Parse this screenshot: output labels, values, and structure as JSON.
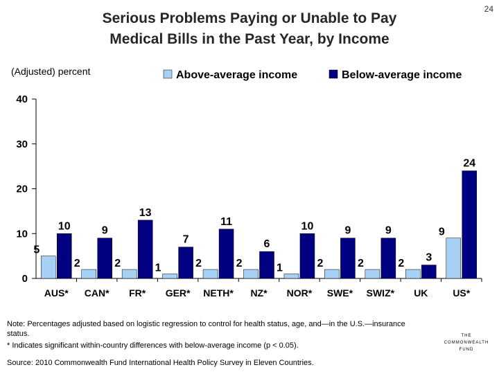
{
  "page_number": "24",
  "title_line1": "Serious Problems Paying or Unable to Pay",
  "title_line2": "Medical Bills in the Past Year, by Income",
  "colors": {
    "above": "#A6D0F4",
    "below": "#000080"
  },
  "notes": {
    "note1": "Note: Percentages adjusted based on logistic regression to control for health status, age, and—in the U.S.—insurance status.",
    "note2": "* Indicates significant within-country differences with below-average income (p < 0.05).",
    "source": "Source: 2010 Commonwealth Fund International Health Policy Survey in Eleven Countries."
  },
  "logo": {
    "line1": "THE",
    "line2": "COMMONWEALTH",
    "line3": "FUND"
  },
  "chart_data": {
    "type": "bar",
    "title": "Serious Problems Paying or Unable to Pay Medical Bills in the Past Year, by Income",
    "ylabel": "(Adjusted) percent",
    "xlabel": "",
    "ylim": [
      0,
      40
    ],
    "yticks": [
      0,
      10,
      20,
      30,
      40
    ],
    "legend_position": "top",
    "categories": [
      "AUS*",
      "CAN*",
      "FR*",
      "GER*",
      "NETH*",
      "NZ*",
      "NOR*",
      "SWE*",
      "SWIZ*",
      "UK",
      "US*"
    ],
    "series": [
      {
        "name": "Above-average income",
        "values": [
          5,
          2,
          2,
          1,
          2,
          2,
          1,
          2,
          2,
          2,
          9
        ]
      },
      {
        "name": "Below-average income",
        "values": [
          10,
          9,
          13,
          7,
          11,
          6,
          10,
          9,
          9,
          3,
          24
        ]
      }
    ]
  }
}
